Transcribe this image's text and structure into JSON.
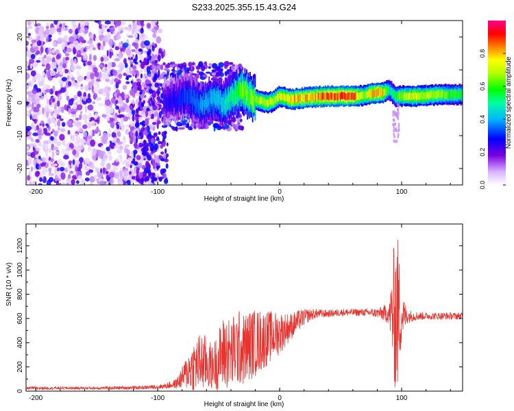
{
  "figure_title": "S233.2025.355.15.43.G24",
  "chart_data": [
    {
      "type": "heatmap",
      "title": "S233.2025.355.15.43.G24",
      "xlabel": "Height of straight line (km)",
      "ylabel": "Frequency (Hz)",
      "xlim": [
        -208,
        150
      ],
      "ylim": [
        -25,
        25
      ],
      "x_ticks": [
        {
          "value": -200,
          "label": "-200"
        },
        {
          "value": -100,
          "label": "-100"
        },
        {
          "value": 0,
          "label": "0"
        },
        {
          "value": 100,
          "label": "100"
        }
      ],
      "y_ticks": [
        {
          "value": 20,
          "label": "20"
        },
        {
          "value": 10,
          "label": "10"
        },
        {
          "value": 0,
          "label": "0"
        },
        {
          "value": -10,
          "label": "-10"
        },
        {
          "value": -20,
          "label": "-20"
        }
      ],
      "colorbar": {
        "label": "Normalized spectral amplitude",
        "range": [
          0,
          1
        ],
        "ticks": [
          {
            "value": 0.0,
            "label": "0.0"
          },
          {
            "value": 0.2,
            "label": "0.2"
          },
          {
            "value": 0.4,
            "label": "0.4"
          },
          {
            "value": 0.6,
            "label": "0.6"
          },
          {
            "value": 0.8,
            "label": "0.8"
          }
        ]
      },
      "ridge": {
        "description_series": "dominant frequency ridge",
        "x": [
          -95,
          -85,
          -75,
          -65,
          -55,
          -45,
          -35,
          -30,
          -25,
          -20,
          -15,
          -10,
          -5,
          0,
          5,
          10,
          20,
          30,
          40,
          50,
          60,
          70,
          75,
          80,
          85,
          90,
          95,
          100,
          110,
          120,
          130,
          140,
          150
        ],
        "y": [
          0,
          1,
          2,
          -1,
          1,
          0,
          3,
          4,
          2,
          1,
          0.5,
          0,
          0.5,
          2,
          1.5,
          1,
          1.5,
          1.8,
          2,
          2,
          2,
          2.2,
          2.8,
          3,
          3,
          4,
          2,
          2,
          2,
          2.2,
          2.5,
          2.5,
          2.5
        ],
        "amplitude": [
          0.25,
          0.3,
          0.35,
          0.4,
          0.45,
          0.5,
          0.6,
          0.7,
          0.65,
          0.7,
          0.75,
          0.75,
          0.75,
          0.8,
          0.8,
          0.85,
          0.85,
          0.9,
          0.95,
          0.95,
          0.95,
          0.7,
          0.9,
          0.9,
          0.85,
          0.5,
          0.6,
          0.7,
          0.8,
          0.75,
          0.7,
          0.65,
          0.6
        ]
      }
    },
    {
      "type": "line",
      "xlabel": "Height of straight line (km)",
      "ylabel": "SNR (10 * v/v)",
      "xlim": [
        -208,
        150
      ],
      "ylim": [
        0,
        1380
      ],
      "x_ticks": [
        {
          "value": -200,
          "label": "-200"
        },
        {
          "value": -100,
          "label": "-100"
        },
        {
          "value": 0,
          "label": "0"
        },
        {
          "value": 100,
          "label": "100"
        }
      ],
      "y_ticks": [
        {
          "value": 0,
          "label": "0"
        },
        {
          "value": 200,
          "label": "200"
        },
        {
          "value": 400,
          "label": "400"
        },
        {
          "value": 600,
          "label": "600"
        },
        {
          "value": 800,
          "label": "800"
        },
        {
          "value": 1000,
          "label": "1000"
        },
        {
          "value": 1200,
          "label": "1200"
        }
      ],
      "series": [
        {
          "name": "SNR",
          "color": "#e8332e",
          "envelope": {
            "x": [
              -208,
              -150,
              -110,
              -95,
              -85,
              -80,
              -75,
              -70,
              -65,
              -60,
              -55,
              -50,
              -45,
              -40,
              -35,
              -30,
              -25,
              -20,
              -15,
              -10,
              -5,
              0,
              5,
              10,
              15,
              20,
              25,
              30,
              40,
              50,
              60,
              70,
              80,
              90,
              93,
              95,
              97,
              100,
              105,
              110,
              120,
              130,
              140,
              150
            ],
            "y": [
              25,
              25,
              30,
              40,
              60,
              110,
              170,
              210,
              240,
              230,
              200,
              260,
              330,
              300,
              360,
              340,
              380,
              400,
              420,
              440,
              460,
              480,
              510,
              540,
              580,
              610,
              630,
              640,
              640,
              650,
              650,
              650,
              645,
              640,
              640,
              640,
              640,
              620,
              620,
              620,
              620,
              620,
              620,
              620
            ],
            "jitter": [
              12,
              12,
              15,
              20,
              40,
              90,
              160,
              220,
              250,
              230,
              180,
              260,
              320,
              300,
              330,
              300,
              300,
              280,
              260,
              230,
              200,
              180,
              140,
              110,
              90,
              70,
              50,
              40,
              30,
              30,
              30,
              30,
              40,
              90,
              500,
              700,
              650,
              200,
              60,
              40,
              30,
              30,
              30,
              30
            ]
          }
        }
      ]
    }
  ]
}
